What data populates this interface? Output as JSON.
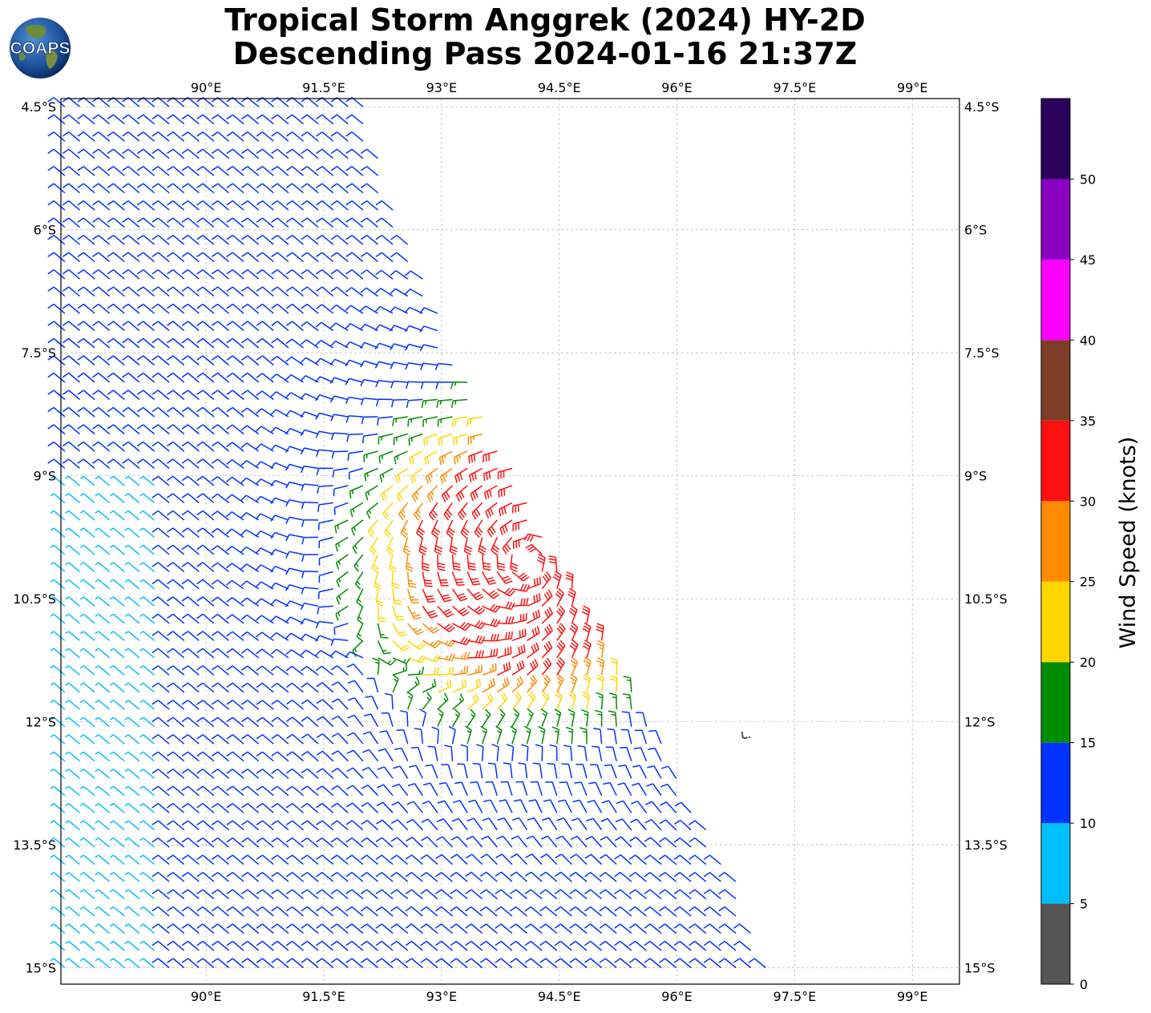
{
  "header": {
    "title_line1": "Tropical Storm Anggrek (2024) HY-2D",
    "title_line2": "Descending Pass 2024-01-16 21:37Z",
    "logo_text": "COAPS"
  },
  "map": {
    "lon_range": [
      88.15,
      99.6
    ],
    "lat_range": [
      -15.2,
      -4.4
    ],
    "lon_ticks": [
      {
        "value": 90.0,
        "label": "90°E"
      },
      {
        "value": 91.5,
        "label": "91.5°E"
      },
      {
        "value": 93.0,
        "label": "93°E"
      },
      {
        "value": 94.5,
        "label": "94.5°E"
      },
      {
        "value": 96.0,
        "label": "96°E"
      },
      {
        "value": 97.5,
        "label": "97.5°E"
      },
      {
        "value": 99.0,
        "label": "99°E"
      }
    ],
    "lat_ticks": [
      {
        "value": -4.5,
        "label": "4.5°S"
      },
      {
        "value": -6.0,
        "label": "6°S"
      },
      {
        "value": -7.5,
        "label": "7.5°S"
      },
      {
        "value": -9.0,
        "label": "9°S"
      },
      {
        "value": -10.5,
        "label": "10.5°S"
      },
      {
        "value": -12.0,
        "label": "12°S"
      },
      {
        "value": -13.5,
        "label": "13.5°S"
      },
      {
        "value": -15.0,
        "label": "15°S"
      }
    ],
    "grid": true,
    "storm_center": {
      "lon": 94.1,
      "lat": -10.05
    },
    "island": {
      "lon": 96.88,
      "lat": -12.17
    },
    "swath_edge": [
      [
        92.0,
        -4.5
      ],
      [
        92.6,
        -6.2
      ],
      [
        93.2,
        -7.6
      ],
      [
        93.9,
        -8.9
      ],
      [
        94.4,
        -9.9
      ],
      [
        94.8,
        -10.6
      ],
      [
        95.4,
        -11.6
      ],
      [
        96.0,
        -12.6
      ],
      [
        96.8,
        -14.0
      ],
      [
        97.2,
        -15.2
      ]
    ]
  },
  "colorbar": {
    "title": "Wind Speed (knots)",
    "bins": [
      {
        "min": 0,
        "max": 5,
        "color": "#555555"
      },
      {
        "min": 5,
        "max": 10,
        "color": "#00bfff"
      },
      {
        "min": 10,
        "max": 15,
        "color": "#0033ff"
      },
      {
        "min": 15,
        "max": 20,
        "color": "#008c00"
      },
      {
        "min": 20,
        "max": 25,
        "color": "#ffd700"
      },
      {
        "min": 25,
        "max": 30,
        "color": "#ff8c00"
      },
      {
        "min": 30,
        "max": 35,
        "color": "#ff1010"
      },
      {
        "min": 35,
        "max": 40,
        "color": "#7f3c28"
      },
      {
        "min": 40,
        "max": 45,
        "color": "#ff00ff"
      },
      {
        "min": 45,
        "max": 50,
        "color": "#8a00c0"
      },
      {
        "min": 50,
        "max": 55,
        "color": "#2b005a"
      }
    ],
    "tick_labels": [
      "0",
      "5",
      "10",
      "15",
      "20",
      "25",
      "30",
      "35",
      "40",
      "45",
      "50"
    ]
  }
}
